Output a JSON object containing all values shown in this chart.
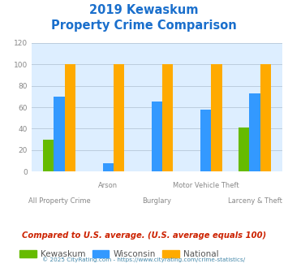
{
  "title_line1": "2019 Kewaskum",
  "title_line2": "Property Crime Comparison",
  "title_color": "#1a6fcc",
  "categories": [
    "All Property Crime",
    "Arson",
    "Burglary",
    "Motor Vehicle Theft",
    "Larceny & Theft"
  ],
  "kewaskum": [
    30,
    0,
    0,
    0,
    41
  ],
  "wisconsin": [
    70,
    8,
    65,
    58,
    73
  ],
  "national": [
    100,
    100,
    100,
    100,
    100
  ],
  "kewaskum_color": "#66bb00",
  "wisconsin_color": "#3399ff",
  "national_color": "#ffaa00",
  "ylim": [
    0,
    120
  ],
  "yticks": [
    0,
    20,
    40,
    60,
    80,
    100,
    120
  ],
  "plot_bg": "#ddeeff",
  "legend_labels": [
    "Kewaskum",
    "Wisconsin",
    "National"
  ],
  "footer_text": "Compared to U.S. average. (U.S. average equals 100)",
  "footer_color": "#cc2200",
  "copyright_text": "© 2025 CityRating.com - https://www.cityrating.com/crime-statistics/",
  "copyright_color": "#4488aa",
  "tick_label_color": "#888888",
  "grid_color": "#bbccdd",
  "bar_width": 0.22
}
